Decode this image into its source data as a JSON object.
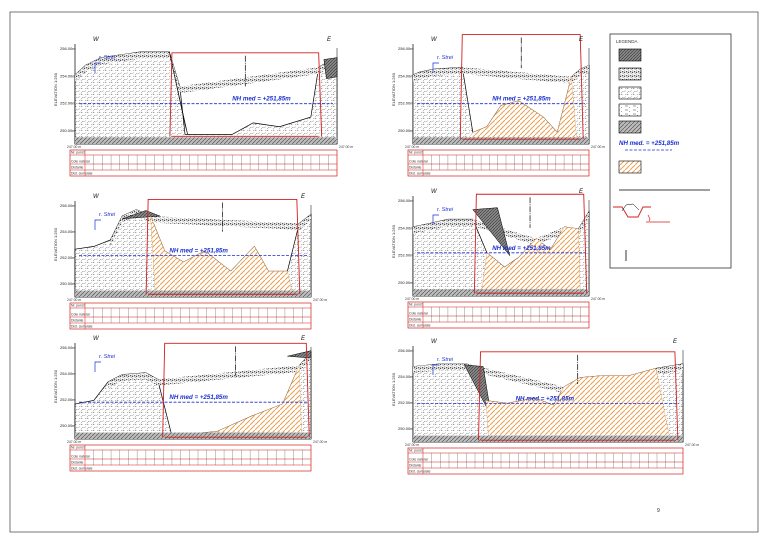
{
  "page": {
    "number": "9"
  },
  "legend": {
    "title": "LEGENDA",
    "nh_label": "NH med. = +251,85m"
  },
  "profiles": [
    {
      "west": "W",
      "east": "E",
      "river": "r. Strei",
      "nh": "NH med = +251,85m",
      "yaxis": "ELEVATION 1:250",
      "ticks": [
        "256.00m",
        "254.00m",
        "252.00m",
        "250.00m"
      ],
      "datum": "247.00 m",
      "datum_r": "247.00 m",
      "rows": [
        "Nr. punct",
        "Cote natural",
        "Distante",
        "Dist. cumulate"
      ]
    },
    {
      "west": "W",
      "east": "E",
      "river": "r. Strei",
      "nh": "NH med = +251,85m",
      "yaxis": "ELEVATION 1:250",
      "ticks": [
        "256.00m",
        "254.00m",
        "252.00m",
        "250.00m"
      ],
      "datum": "247.00 m",
      "datum_r": "247.00 m",
      "rows": [
        "Nr. punct",
        "Cote natural",
        "Distante",
        "Dist. cumulate"
      ]
    },
    {
      "west": "W",
      "east": "E",
      "river": "r. Strei",
      "nh": "NH med = +251,85m",
      "yaxis": "ELEVATION 1:250",
      "ticks": [
        "256.00m",
        "254.00m",
        "252.00m",
        "250.00m"
      ],
      "datum": "247.00 m",
      "datum_r": "247.00 m",
      "rows": [
        "Nr. punct",
        "Cote natural",
        "Distante",
        "Dist. cumulate"
      ]
    },
    {
      "west": "W",
      "east": "E",
      "river": "r. Strei",
      "nh": "NH med = +251,85m",
      "yaxis": "ELEVATION 1:250",
      "ticks": [
        "256.00m",
        "254.00m",
        "252.00m",
        "250.00m"
      ],
      "datum": "247.00 m",
      "datum_r": "247.00 m",
      "rows": [
        "Nr. punct",
        "Cote natural",
        "Distante",
        "Dist. cumulate"
      ]
    },
    {
      "west": "W",
      "east": "E",
      "river": "r. Strei",
      "nh": "NH med = +251,85m",
      "yaxis": "ELEVATION 1:250",
      "ticks": [
        "256.00m",
        "254.00m",
        "252.00m",
        "250.00m"
      ],
      "datum": "247.00 m",
      "datum_r": "247.00 m",
      "rows": [
        "Nr. punct",
        "Cote natural",
        "Distante",
        "Dist. cumulate"
      ]
    },
    {
      "west": "W",
      "east": "E",
      "river": "r. Strei",
      "nh": "NH med = +251,85m",
      "yaxis": "ELEVATION 1:250",
      "ticks": [
        "256.00m",
        "254.00m",
        "252.00m",
        "250.00m"
      ],
      "datum": "247.00 m",
      "datum_r": "247.00 m",
      "rows": [
        "Nr. punct",
        "Cote natural",
        "Distante",
        "Dist. cumulate"
      ]
    }
  ]
}
